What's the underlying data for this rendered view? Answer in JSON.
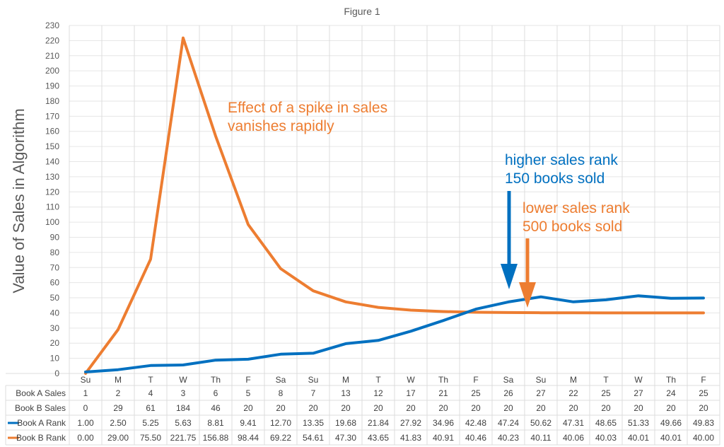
{
  "chart_data": {
    "type": "line",
    "title": "Figure 1",
    "xlabel": "",
    "ylabel": "Value of Sales in Algorithm",
    "ylim": [
      0,
      230
    ],
    "ytick_step": 10,
    "grid": true,
    "categories": [
      "Su",
      "M",
      "T",
      "W",
      "Th",
      "F",
      "Sa",
      "Su",
      "M",
      "T",
      "W",
      "Th",
      "F",
      "Sa",
      "Su",
      "M",
      "T",
      "W",
      "Th",
      "F"
    ],
    "table_rows": [
      {
        "label": "Book A Sales",
        "values": [
          "1",
          "2",
          "4",
          "3",
          "6",
          "5",
          "8",
          "7",
          "13",
          "12",
          "17",
          "21",
          "25",
          "26",
          "27",
          "22",
          "25",
          "27",
          "24",
          "25"
        ]
      },
      {
        "label": "Book B Sales",
        "values": [
          "0",
          "29",
          "61",
          "184",
          "46",
          "20",
          "20",
          "20",
          "20",
          "20",
          "20",
          "20",
          "20",
          "20",
          "20",
          "20",
          "20",
          "20",
          "20",
          "20"
        ]
      }
    ],
    "series": [
      {
        "name": "Book A Rank",
        "color": "#0070C0",
        "values": [
          1.0,
          2.5,
          5.25,
          5.63,
          8.81,
          9.41,
          12.7,
          13.35,
          19.68,
          21.84,
          27.92,
          34.96,
          42.48,
          47.24,
          50.62,
          47.31,
          48.65,
          51.33,
          49.66,
          49.83
        ],
        "labels": [
          "1.00",
          "2.50",
          "5.25",
          "5.63",
          "8.81",
          "9.41",
          "12.70",
          "13.35",
          "19.68",
          "21.84",
          "27.92",
          "34.96",
          "42.48",
          "47.24",
          "50.62",
          "47.31",
          "48.65",
          "51.33",
          "49.66",
          "49.83"
        ]
      },
      {
        "name": "Book B Rank",
        "color": "#ED7D31",
        "values": [
          0.0,
          29.0,
          75.5,
          221.75,
          156.88,
          98.44,
          69.22,
          54.61,
          47.3,
          43.65,
          41.83,
          40.91,
          40.46,
          40.23,
          40.11,
          40.06,
          40.03,
          40.01,
          40.01,
          40.0
        ],
        "labels": [
          "0.00",
          "29.00",
          "75.50",
          "221.75",
          "156.88",
          "98.44",
          "69.22",
          "54.61",
          "47.30",
          "43.65",
          "41.83",
          "40.91",
          "40.46",
          "40.23",
          "40.11",
          "40.06",
          "40.03",
          "40.01",
          "40.01",
          "40.00"
        ]
      }
    ],
    "annotations": [
      {
        "lines": [
          "Effect of a spike in sales",
          "vanishes rapidly"
        ],
        "color": "#ED7D31"
      },
      {
        "lines": [
          "higher sales rank",
          "150 books sold"
        ],
        "color": "#0070C0"
      },
      {
        "lines": [
          "lower sales rank",
          "500 books sold"
        ],
        "color": "#ED7D31"
      }
    ]
  }
}
